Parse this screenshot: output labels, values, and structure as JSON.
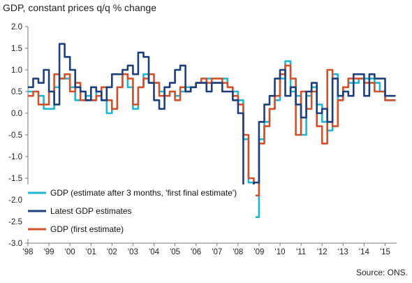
{
  "chart_data": {
    "type": "line",
    "title": "GDP, constant prices q/q % change",
    "source": "Source: ONS.",
    "ylim": [
      -3.0,
      2.0
    ],
    "y_ticks": [
      "2.0",
      "1.5",
      "1.0",
      "0.5",
      "0.0",
      "-0.5",
      "-1.0",
      "-1.5",
      "-2.0",
      "-2.5",
      "-3.0"
    ],
    "x_ticks": [
      "'98",
      "'99",
      "'00",
      "'01",
      "'02",
      "'03",
      "'04",
      "'05",
      "'06",
      "'07",
      "'08",
      "'09",
      "'10",
      "'11",
      "'12",
      "'13",
      "'14",
      "'15"
    ],
    "grid": false,
    "legend_position": "bottom-left",
    "series": [
      {
        "name": "GDP (estimate after 3 months, 'first final estimate')",
        "color": "#1fb6d2",
        "x": [
          1998.0,
          1998.25,
          1998.5,
          1998.75,
          1999.0,
          1999.25,
          1999.5,
          1999.75,
          2000.0,
          2000.25,
          2000.5,
          2000.75,
          2001.0,
          2001.25,
          2001.5,
          2001.75,
          2002.0,
          2002.25,
          2002.5,
          2002.75,
          2003.0,
          2003.25,
          2003.5,
          2003.75,
          2004.0,
          2004.25,
          2004.5,
          2004.75,
          2005.0,
          2005.25,
          2005.5,
          2005.75,
          2006.0,
          2006.25,
          2006.5,
          2006.75,
          2007.0,
          2007.25,
          2007.5,
          2007.75,
          2008.0,
          2008.25,
          2008.5,
          2008.75,
          2009.0,
          2009.25,
          2009.5,
          2009.75,
          2010.0,
          2010.25,
          2010.5,
          2010.75,
          2011.0,
          2011.25,
          2011.5,
          2011.75,
          2012.0,
          2012.25,
          2012.5,
          2012.75,
          2013.0,
          2013.25,
          2013.5,
          2013.75,
          2014.0,
          2014.25,
          2014.5,
          2014.75,
          2015.0,
          2015.25
        ],
        "values": [
          0.5,
          0.5,
          0.4,
          0.1,
          0.1,
          0.6,
          0.8,
          0.8,
          0.6,
          0.3,
          0.5,
          0.4,
          0.3,
          0.5,
          0.3,
          0.0,
          0.1,
          0.6,
          0.9,
          0.6,
          0.1,
          0.6,
          0.9,
          0.7,
          0.7,
          0.5,
          0.4,
          0.5,
          0.4,
          0.5,
          0.6,
          0.6,
          0.7,
          0.7,
          0.8,
          0.7,
          0.7,
          0.8,
          0.6,
          0.5,
          0.3,
          -0.6,
          -1.6,
          -2.4,
          -0.6,
          -0.2,
          0.1,
          0.3,
          0.8,
          1.2,
          0.5,
          0.4,
          -0.5,
          0.4,
          0.6,
          0.2,
          -0.2,
          -0.4,
          0.9,
          0.3,
          0.6,
          0.7,
          0.7,
          0.8,
          0.8,
          0.8,
          0.7,
          0.5,
          0.3,
          0.3
        ]
      },
      {
        "name": "Latest GDP estimates",
        "color": "#1d3f7a",
        "x": [
          1998.0,
          1998.25,
          1998.5,
          1998.75,
          1999.0,
          1999.25,
          1999.5,
          1999.75,
          2000.0,
          2000.25,
          2000.5,
          2000.75,
          2001.0,
          2001.25,
          2001.5,
          2001.75,
          2002.0,
          2002.25,
          2002.5,
          2002.75,
          2003.0,
          2003.25,
          2003.5,
          2003.75,
          2004.0,
          2004.25,
          2004.5,
          2004.75,
          2005.0,
          2005.25,
          2005.5,
          2005.75,
          2006.0,
          2006.25,
          2006.5,
          2006.75,
          2007.0,
          2007.25,
          2007.5,
          2007.75,
          2008.0,
          2008.25,
          2008.5,
          2008.75,
          2009.0,
          2009.25,
          2009.5,
          2009.75,
          2010.0,
          2010.25,
          2010.5,
          2010.75,
          2011.0,
          2011.25,
          2011.5,
          2011.75,
          2012.0,
          2012.25,
          2012.5,
          2012.75,
          2013.0,
          2013.25,
          2013.5,
          2013.75,
          2014.0,
          2014.25,
          2014.5,
          2014.75,
          2015.0,
          2015.25
        ],
        "values": [
          0.6,
          0.8,
          0.7,
          1.0,
          0.5,
          0.2,
          1.6,
          1.3,
          1.0,
          0.6,
          0.5,
          0.3,
          0.6,
          0.5,
          0.3,
          0.6,
          0.9,
          0.9,
          1.0,
          1.1,
          0.9,
          1.4,
          1.3,
          0.7,
          0.3,
          0.1,
          0.6,
          0.7,
          1.0,
          1.1,
          0.5,
          0.6,
          0.7,
          0.7,
          0.5,
          0.7,
          0.7,
          0.5,
          0.5,
          0.3,
          0.0,
          -1.7,
          -2.2,
          -1.6,
          -0.2,
          0.2,
          0.4,
          0.8,
          1.0,
          0.4,
          0.6,
          0.2,
          -0.1,
          0.5,
          0.7,
          0.0,
          0.1,
          -0.2,
          0.8,
          0.4,
          0.5,
          0.4,
          0.9,
          0.9,
          0.4,
          0.9,
          0.8,
          0.8,
          0.4,
          0.4
        ]
      },
      {
        "name": "GDP (first estimate)",
        "color": "#d2502a",
        "x": [
          1998.0,
          1998.25,
          1998.5,
          1998.75,
          1999.0,
          1999.25,
          1999.5,
          1999.75,
          2000.0,
          2000.25,
          2000.5,
          2000.75,
          2001.0,
          2001.25,
          2001.5,
          2001.75,
          2002.0,
          2002.25,
          2002.5,
          2002.75,
          2003.0,
          2003.25,
          2003.5,
          2003.75,
          2004.0,
          2004.25,
          2004.5,
          2004.75,
          2005.0,
          2005.25,
          2005.5,
          2005.75,
          2006.0,
          2006.25,
          2006.5,
          2006.75,
          2007.0,
          2007.25,
          2007.5,
          2007.75,
          2008.0,
          2008.25,
          2008.5,
          2008.75,
          2009.0,
          2009.25,
          2009.5,
          2009.75,
          2010.0,
          2010.25,
          2010.5,
          2010.75,
          2011.0,
          2011.25,
          2011.5,
          2011.75,
          2012.0,
          2012.25,
          2012.5,
          2012.75,
          2013.0,
          2013.25,
          2013.5,
          2013.75,
          2014.0,
          2014.25,
          2014.5,
          2014.75,
          2015.0,
          2015.25
        ],
        "values": [
          0.4,
          0.5,
          0.2,
          0.2,
          0.5,
          0.9,
          0.8,
          0.9,
          0.5,
          0.7,
          0.3,
          0.3,
          0.3,
          0.4,
          0.6,
          0.3,
          0.1,
          0.6,
          0.9,
          0.8,
          0.2,
          0.6,
          0.8,
          0.9,
          0.7,
          0.4,
          0.4,
          0.5,
          0.3,
          0.6,
          0.5,
          0.6,
          0.7,
          0.8,
          0.7,
          0.8,
          0.8,
          0.7,
          0.6,
          0.4,
          0.2,
          -0.5,
          -1.5,
          -1.9,
          -0.7,
          -0.3,
          0.1,
          0.4,
          0.9,
          1.1,
          0.8,
          -0.5,
          0.5,
          0.1,
          0.5,
          -0.3,
          -0.7,
          1.0,
          -0.3,
          0.3,
          0.6,
          0.8,
          0.8,
          0.8,
          0.7,
          0.7,
          0.5,
          0.5,
          0.3,
          0.3
        ]
      }
    ]
  }
}
